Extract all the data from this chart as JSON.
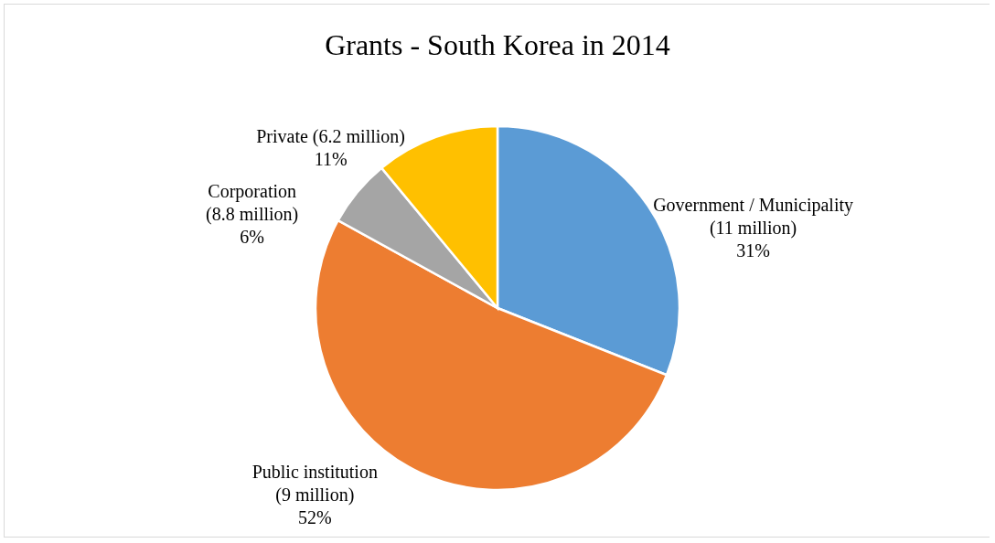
{
  "chart_data": {
    "type": "pie",
    "title": "Grants - South Korea in 2014",
    "categories": [
      "Government / Municipality (11 million)",
      "Public institution (9 million)",
      "Corporation (8.8 million)",
      "Private (6.2 million)"
    ],
    "values": [
      31,
      52,
      6,
      11
    ],
    "colors": [
      "#5b9bd5",
      "#ed7d31",
      "#a5a5a5",
      "#ffc000"
    ],
    "value_labels": [
      "31%",
      "52%",
      "6%",
      "11%"
    ]
  }
}
